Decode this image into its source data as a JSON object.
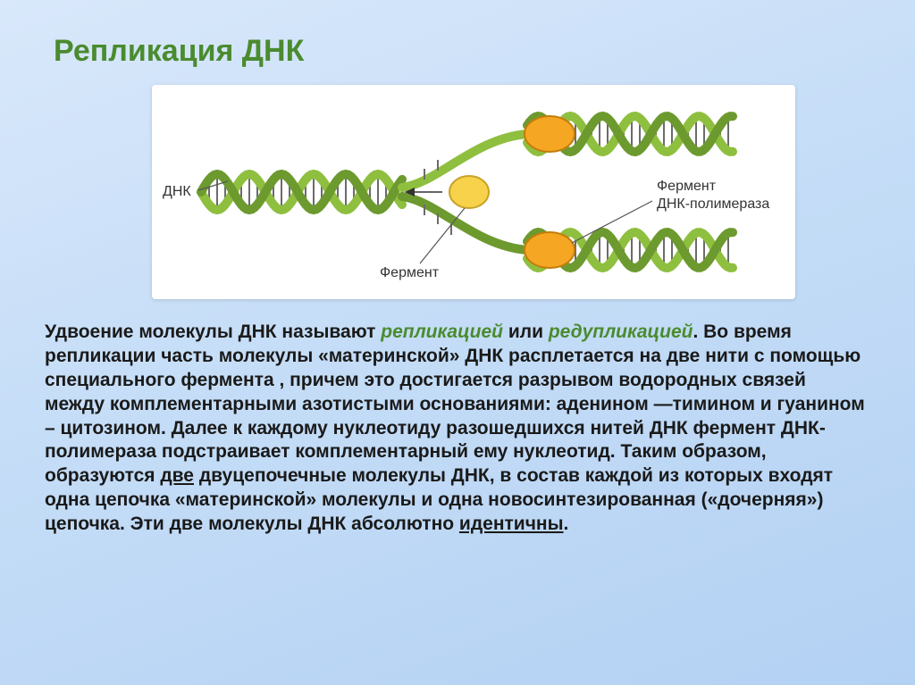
{
  "title": {
    "text": "Репликация ДНК",
    "color": "#4a8b2f",
    "fontsize": 34
  },
  "diagram": {
    "bg": "#ffffff",
    "helix_color": "#8fbf3f",
    "helix_dark": "#6d9a2f",
    "rung_color": "#6b6b6b",
    "polymerase_fill": "#f5a623",
    "polymerase_stroke": "#c47d0a",
    "center_enzyme_fill": "#f7d24a",
    "center_enzyme_stroke": "#c9a227",
    "label_color": "#333333",
    "label_fontsize": 16,
    "leader_color": "#555555",
    "labels": {
      "dna": "ДНК",
      "enzyme": "Фермент",
      "polymerase1": "Фермент",
      "polymerase2": "ДНК-полимераза"
    }
  },
  "body": {
    "color_default": "#1a1a1a",
    "color_green": "#4a8b2f",
    "fontsize": 21,
    "segments": [
      {
        "t": "        Удвоение молекулы ДНК называют  ",
        "c": "default"
      },
      {
        "t": "репликацией",
        "c": "green",
        "i": true
      },
      {
        "t": " или ",
        "c": "default"
      },
      {
        "t": "редупликацией",
        "c": "green",
        "i": true
      },
      {
        "t": ". Во время репликации часть молекулы «материнской» ДНК расплетается на две нити с помощью специального фермента , причем это достигается разрывом водородных связей между комплементарными азотистыми основаниями: аденином —тимином и гуанином – цитозином. Далее к каждому нуклеотиду разошедшихся нитей ДНК фермент ДНК-полимераза подстраивает комплементарный ему нуклеотид. Таким образом, образуются ",
        "c": "default"
      },
      {
        "t": "две",
        "c": "default",
        "u": true
      },
      {
        "t": " двуцепочечные молекулы ДНК, в состав каждой из которых входят одна цепочка «материнской» молекулы и одна новосинтезированная («дочерняя») цепочка. Эти две молекулы ДНК абсолютно ",
        "c": "default"
      },
      {
        "t": "идентичны",
        "c": "default",
        "u": true
      },
      {
        "t": ".",
        "c": "default"
      }
    ]
  }
}
